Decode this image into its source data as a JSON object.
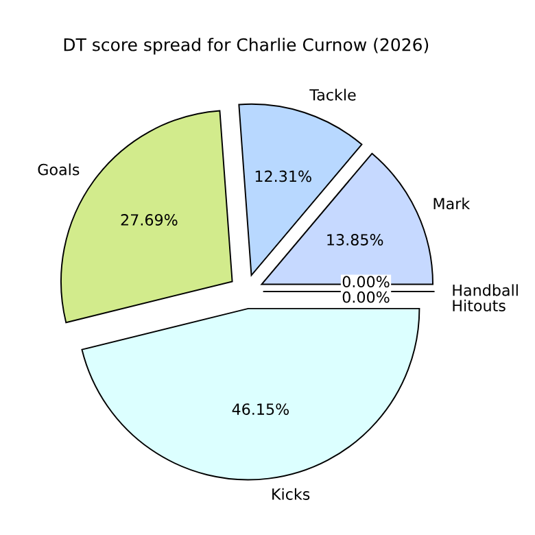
{
  "chart_data": {
    "type": "pie",
    "title": "DT score spread for Charlie Curnow (2026)",
    "categories": [
      "Mark",
      "Tackle",
      "Goals",
      "Kicks",
      "Handball",
      "Hitouts"
    ],
    "values": [
      13.85,
      12.31,
      27.69,
      46.15,
      0,
      0
    ],
    "value_labels": [
      "13.85%",
      "12.31%",
      "27.69%",
      "46.15%",
      "0.00%",
      "0.00%"
    ],
    "colors": [
      "#c6d9ff",
      "#b8d8ff",
      "#d2eb8c",
      "#dcffff",
      "#e8e8e8",
      "#d0d0d0"
    ]
  }
}
